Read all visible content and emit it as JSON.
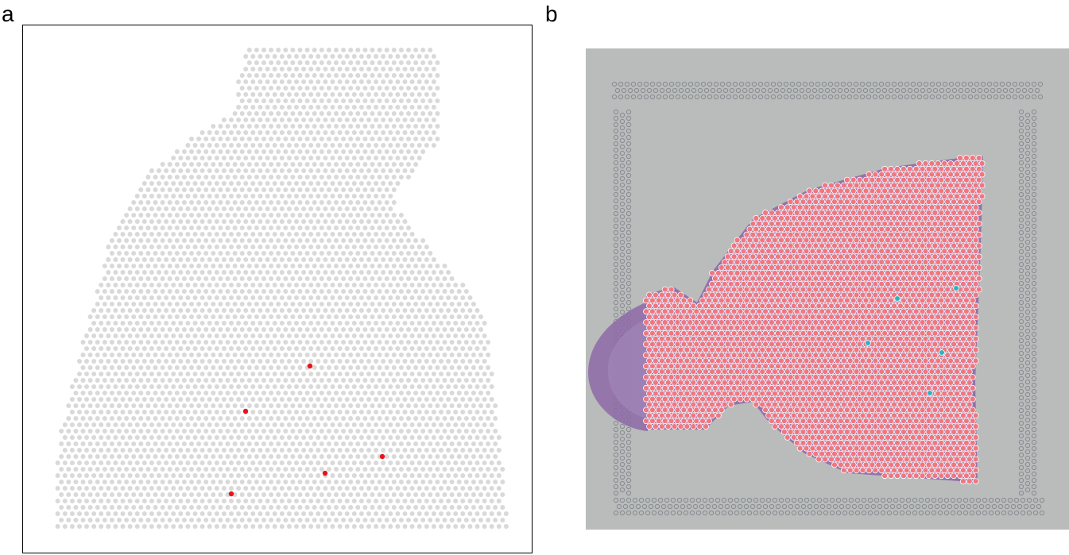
{
  "panel_a": {
    "label": "a",
    "spot_color": "#d9d9d9",
    "highlight_color": "#e8141b",
    "highlighted_spot_count": 5
  },
  "panel_b": {
    "label": "b",
    "background_color": "#b9bcbb",
    "tissue_color": "#8e6aa8",
    "spot_fill_color": "#f0767f",
    "spot_stroke_color": "#ffffff",
    "highlight_color": "#2ab3c3",
    "fiducial_color": "#8a8e92",
    "highlighted_spot_count": 5
  }
}
